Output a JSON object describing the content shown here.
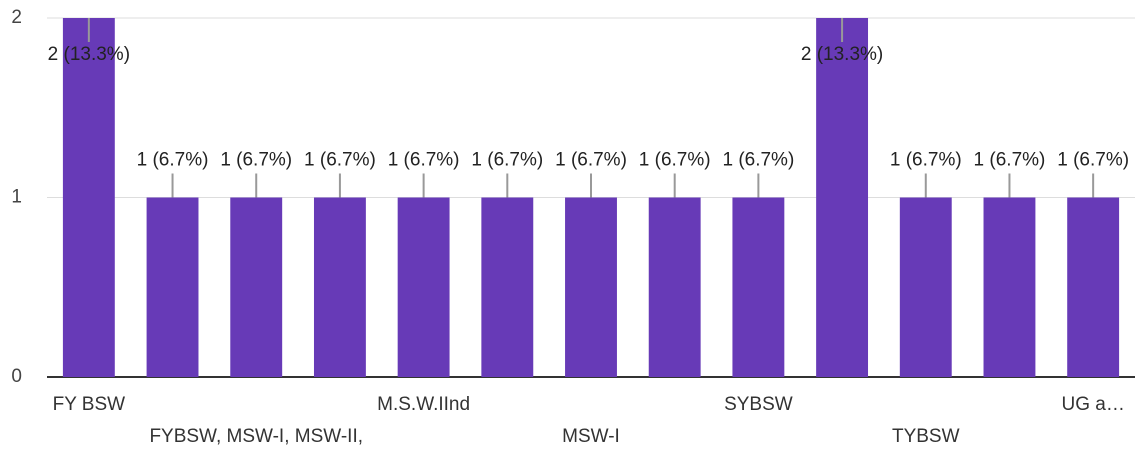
{
  "chart_data": {
    "type": "bar",
    "categories": [
      "FY BSW",
      null,
      "FYBSW, MSW-I, MSW-II,",
      null,
      "M.S.W.IInd",
      null,
      "MSW-I",
      null,
      "SYBSW",
      null,
      "TYBSW",
      null,
      "UG a…"
    ],
    "values": [
      2,
      1,
      1,
      1,
      1,
      1,
      1,
      1,
      1,
      2,
      1,
      1,
      1
    ],
    "value_labels": [
      "2 (13.3%)",
      "1 (6.7%)",
      "1 (6.7%)",
      "1 (6.7%)",
      "1 (6.7%)",
      "1 (6.7%)",
      "1 (6.7%)",
      "1 (6.7%)",
      "1 (6.7%)",
      "2 (13.3%)",
      "1 (6.7%)",
      "1 (6.7%)",
      "1 (6.7%)"
    ],
    "color": "#673ab7",
    "ylim": [
      0,
      2
    ],
    "yticks": [
      0,
      1,
      2
    ],
    "grid": true
  }
}
